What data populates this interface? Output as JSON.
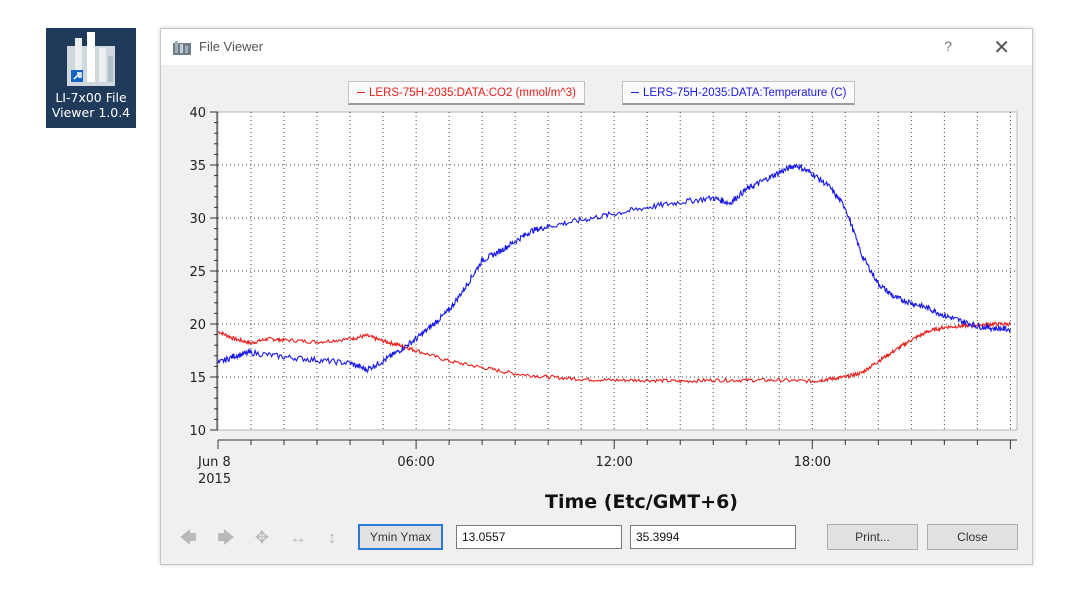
{
  "desktop_icon": {
    "label_line1": "LI-7x00 File",
    "label_line2": "Viewer 1.0.4",
    "icon": "file-viewer-app-icon"
  },
  "window": {
    "title": "File Viewer",
    "help_label": "?",
    "close_label": "✕"
  },
  "legend": [
    {
      "label": "LERS-75H-2035:DATA:CO2 (mmol/m^3)",
      "color": "#e8201c"
    },
    {
      "label": "LERS-75H-2035:DATA:Temperature (C)",
      "color": "#1a1ae6"
    }
  ],
  "chart_data": {
    "type": "line",
    "xlabel": "Time (Etc/GMT+6)",
    "ylabel": "",
    "x_ticks": [
      "Jun 8\n2015",
      "06:00",
      "12:00",
      "18:00"
    ],
    "x_tick_hours": [
      0,
      6,
      12,
      18
    ],
    "xlim_hours": [
      0,
      24.2
    ],
    "ylim": [
      10,
      40
    ],
    "y_ticks": [
      10,
      15,
      20,
      25,
      30,
      35,
      40
    ],
    "grid": true,
    "series": [
      {
        "name": "LERS-75H-2035:DATA:CO2 (mmol/m^3)",
        "color": "#e8201c",
        "x_hours": [
          0,
          0.5,
          1,
          1.5,
          2,
          3,
          4,
          4.5,
          5,
          5.5,
          6,
          7,
          8,
          9,
          10,
          11,
          12,
          13,
          14,
          15,
          16,
          17,
          18,
          18.5,
          19,
          19.5,
          20,
          20.5,
          21,
          21.5,
          22,
          22.5,
          23,
          23.5,
          24
        ],
        "values": [
          19.3,
          18.6,
          18.2,
          18.6,
          18.5,
          18.3,
          18.6,
          18.9,
          18.4,
          18.0,
          17.5,
          16.5,
          15.9,
          15.3,
          15.0,
          14.8,
          14.7,
          14.7,
          14.6,
          14.7,
          14.7,
          14.7,
          14.6,
          14.8,
          15.0,
          15.4,
          16.5,
          17.5,
          18.5,
          19.3,
          19.7,
          19.8,
          19.9,
          20.0,
          20.0
        ]
      },
      {
        "name": "LERS-75H-2035:DATA:Temperature (C)",
        "color": "#1a1ae6",
        "x_hours": [
          0,
          0.5,
          1,
          2,
          3,
          4,
          4.5,
          5,
          5.5,
          6,
          6.5,
          7,
          7.5,
          8,
          8.5,
          9,
          9.5,
          10,
          11,
          12,
          13,
          14,
          15,
          15.5,
          16,
          16.5,
          17,
          17.5,
          18,
          18.5,
          19,
          19.5,
          20,
          20.5,
          21,
          21.5,
          22,
          22.5,
          23,
          23.5,
          24
        ],
        "values": [
          16.3,
          17.0,
          17.3,
          16.9,
          16.6,
          16.3,
          15.7,
          16.5,
          17.5,
          18.6,
          19.9,
          21.3,
          23.5,
          26.0,
          26.8,
          27.8,
          28.8,
          29.2,
          29.8,
          30.4,
          31.0,
          31.5,
          31.9,
          31.4,
          32.7,
          33.5,
          34.3,
          35.0,
          34.2,
          33.0,
          31.0,
          26.5,
          23.8,
          22.5,
          22.0,
          21.5,
          20.8,
          20.3,
          19.8,
          19.6,
          19.5
        ]
      }
    ]
  },
  "toolbar": {
    "icons": [
      "arrow-left-icon",
      "arrow-right-icon",
      "pan-icon",
      "zoom-horizontal-icon",
      "zoom-vertical-icon"
    ],
    "ymin_ymax_label": "Ymin Ymax",
    "ymin_value": "13.0557",
    "ymax_value": "35.3994",
    "print_label": "Print...",
    "close_label": "Close"
  }
}
